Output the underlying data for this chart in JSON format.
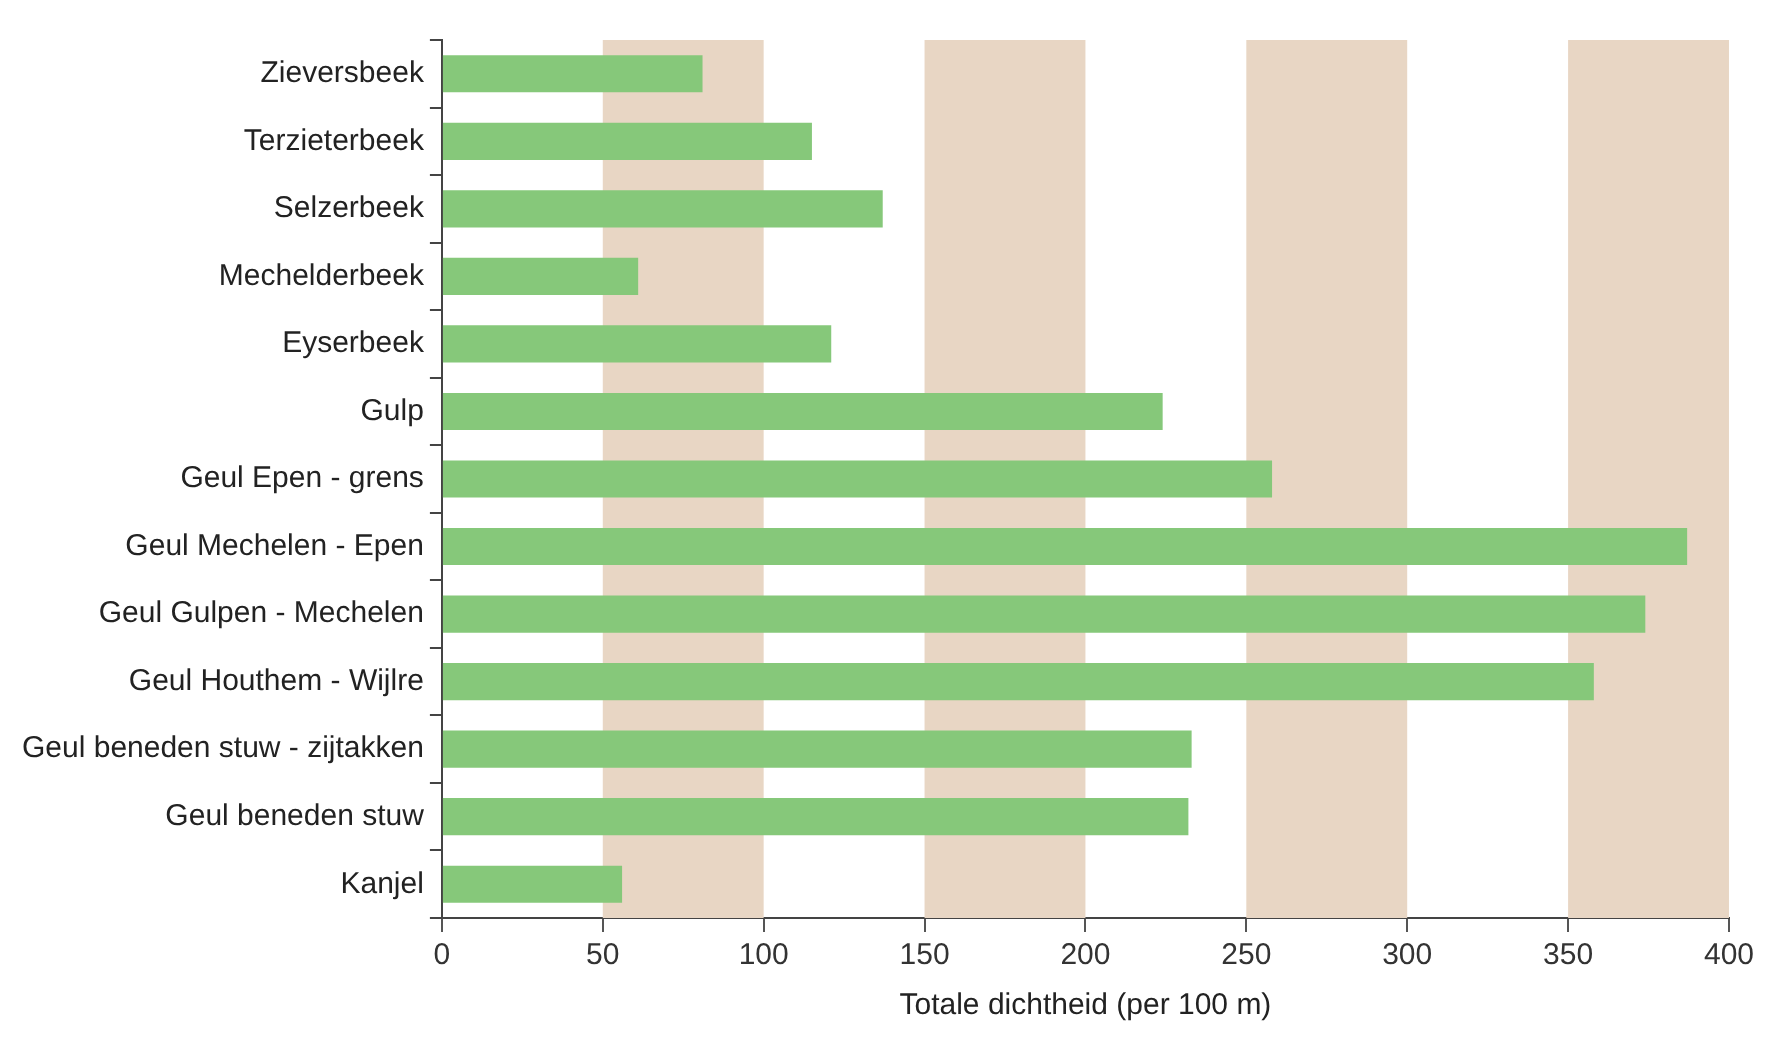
{
  "chart_data": {
    "type": "bar",
    "orientation": "horizontal",
    "xlabel": "Totale dichtheid (per 100 m)",
    "categories": [
      "Zieversbeek",
      "Terzieterbeek",
      "Selzerbeek",
      "Mechelderbeek",
      "Eyserbeek",
      "Gulp",
      "Geul Epen - grens",
      "Geul Mechelen - Epen",
      "Geul Gulpen - Mechelen",
      "Geul Houthem - Wijlre",
      "Geul beneden stuw - zijtakken",
      "Geul beneden stuw",
      "Kanjel"
    ],
    "values": [
      81,
      115,
      137,
      61,
      121,
      224,
      258,
      387,
      374,
      358,
      233,
      232,
      56
    ],
    "color": "#86c87a",
    "xlim": [
      0,
      400
    ],
    "xticks": [
      0,
      50,
      100,
      150,
      200,
      250,
      300,
      350,
      400
    ],
    "bands": [
      {
        "axis": "x",
        "from": 50,
        "to": 100,
        "color": "#e8d6c4"
      },
      {
        "axis": "x",
        "from": 150,
        "to": 200,
        "color": "#e8d6c4"
      },
      {
        "axis": "x",
        "from": 250,
        "to": 300,
        "color": "#e8d6c4"
      },
      {
        "axis": "x",
        "from": 350,
        "to": 400,
        "color": "#e8d6c4"
      }
    ],
    "grid": false,
    "legend": false
  }
}
